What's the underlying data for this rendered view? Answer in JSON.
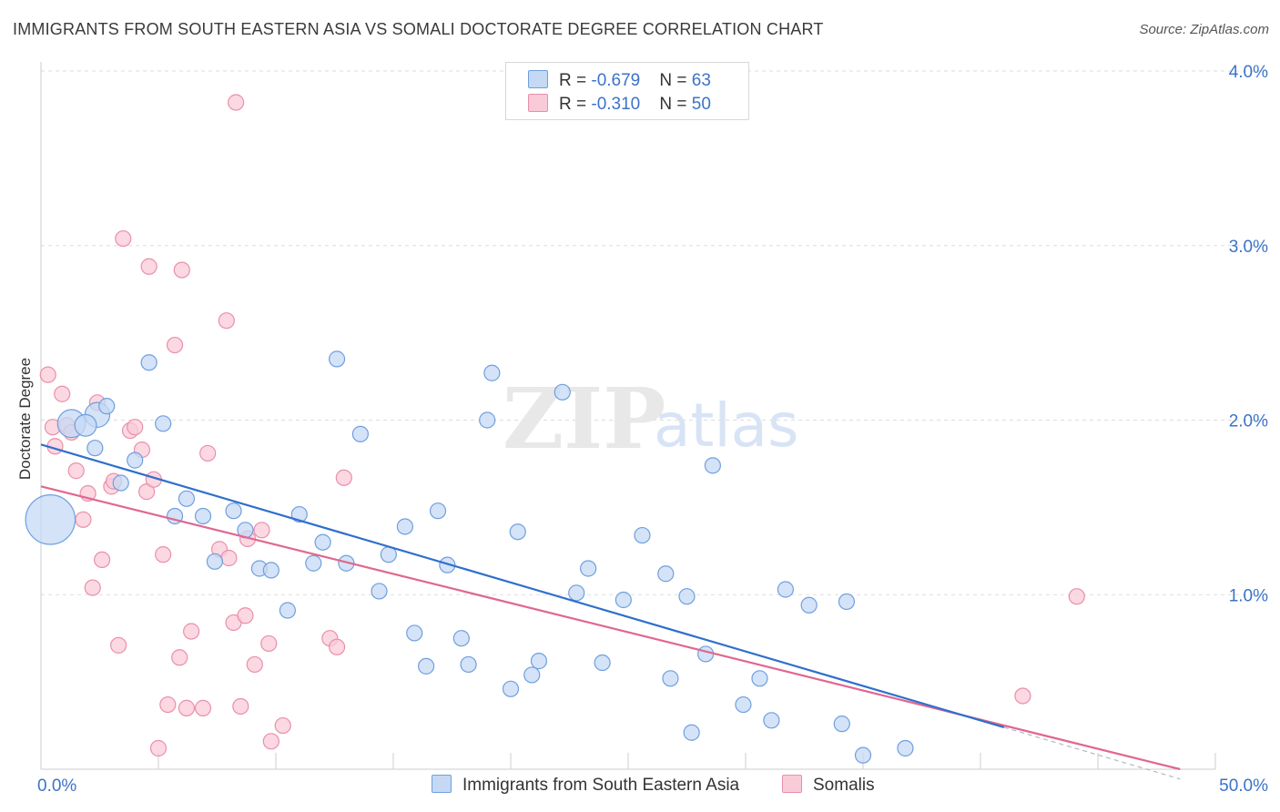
{
  "header": {
    "title": "IMMIGRANTS FROM SOUTH EASTERN ASIA VS SOMALI DOCTORATE DEGREE CORRELATION CHART",
    "source": "Source: ZipAtlas.com"
  },
  "watermark": {
    "zip": "ZIP",
    "atlas": "atlas"
  },
  "legend": {
    "rows": [
      {
        "r_label": "R = ",
        "r_value": "-0.679",
        "n_label": "N = ",
        "n_value": "63"
      },
      {
        "r_label": "R = ",
        "r_value": "-0.310",
        "n_label": "N = ",
        "n_value": "50"
      }
    ]
  },
  "bottom_legend": {
    "series1": "Immigrants from South Eastern Asia",
    "series2": "Somalis"
  },
  "chart_data": {
    "type": "scatter",
    "title": "IMMIGRANTS FROM SOUTH EASTERN ASIA VS SOMALI DOCTORATE DEGREE CORRELATION CHART",
    "ylabel": "Doctorate Degree",
    "xlabel": "",
    "xlim": [
      0,
      50
    ],
    "ylim": [
      0,
      4.0
    ],
    "x_ticks": [
      "0.0%",
      "50.0%"
    ],
    "y_ticks": [
      {
        "value": 1.0,
        "label": "1.0%"
      },
      {
        "value": 2.0,
        "label": "2.0%"
      },
      {
        "value": 3.0,
        "label": "3.0%"
      },
      {
        "value": 4.0,
        "label": "4.0%"
      }
    ],
    "grid": true,
    "colors": {
      "series1_fill": "#c5d9f4",
      "series1_stroke": "#6f9fe0",
      "series1_line": "#2f6fcc",
      "series2_fill": "#f9cbd8",
      "series2_stroke": "#ea8fab",
      "series2_line": "#e0678f",
      "axis_label": "#3b73c8",
      "grid": "#dddddd"
    },
    "series": [
      {
        "name": "Immigrants from South Eastern Asia",
        "r": -0.679,
        "n": 63,
        "trend": {
          "x0": 0,
          "y0": 1.86,
          "x1": 41,
          "y1": 0.24
        },
        "points": [
          [
            0.4,
            1.43,
            3.2
          ],
          [
            1.3,
            1.98,
            1.8
          ],
          [
            2.4,
            2.03,
            1.6
          ],
          [
            1.9,
            1.97,
            1.4
          ],
          [
            2.3,
            1.84,
            1
          ],
          [
            2.8,
            2.08,
            1
          ],
          [
            3.4,
            1.64,
            1
          ],
          [
            4.0,
            1.77,
            1
          ],
          [
            4.6,
            2.33,
            1
          ],
          [
            5.2,
            1.98,
            1
          ],
          [
            5.7,
            1.45,
            1
          ],
          [
            6.2,
            1.55,
            1
          ],
          [
            6.9,
            1.45,
            1
          ],
          [
            7.4,
            1.19,
            1
          ],
          [
            8.2,
            1.48,
            1
          ],
          [
            8.7,
            1.37,
            1
          ],
          [
            9.3,
            1.15,
            1
          ],
          [
            9.8,
            1.14,
            1
          ],
          [
            10.5,
            0.91,
            1
          ],
          [
            11.0,
            1.46,
            1
          ],
          [
            11.6,
            1.18,
            1
          ],
          [
            12.0,
            1.3,
            1
          ],
          [
            12.6,
            2.35,
            1
          ],
          [
            13.0,
            1.18,
            1
          ],
          [
            13.6,
            1.92,
            1
          ],
          [
            14.4,
            1.02,
            1
          ],
          [
            14.8,
            1.23,
            1
          ],
          [
            15.5,
            1.39,
            1
          ],
          [
            15.9,
            0.78,
            1
          ],
          [
            16.4,
            0.59,
            1
          ],
          [
            16.9,
            1.48,
            1
          ],
          [
            17.3,
            1.17,
            1
          ],
          [
            17.9,
            0.75,
            1
          ],
          [
            18.2,
            0.6,
            1
          ],
          [
            19.0,
            2.0,
            1
          ],
          [
            19.2,
            2.27,
            1
          ],
          [
            20.0,
            0.46,
            1
          ],
          [
            20.3,
            1.36,
            1
          ],
          [
            20.9,
            0.54,
            1
          ],
          [
            21.2,
            0.62,
            1
          ],
          [
            22.2,
            2.16,
            1
          ],
          [
            22.8,
            1.01,
            1
          ],
          [
            23.3,
            1.15,
            1
          ],
          [
            23.9,
            0.61,
            1
          ],
          [
            24.8,
            0.97,
            1
          ],
          [
            25.6,
            1.34,
            1
          ],
          [
            26.6,
            1.12,
            1
          ],
          [
            26.8,
            0.52,
            1
          ],
          [
            27.5,
            0.99,
            1
          ],
          [
            27.7,
            0.21,
            1
          ],
          [
            28.3,
            0.66,
            1
          ],
          [
            28.6,
            1.74,
            1
          ],
          [
            29.9,
            0.37,
            1
          ],
          [
            30.6,
            0.52,
            1
          ],
          [
            31.1,
            0.28,
            1
          ],
          [
            31.7,
            1.03,
            1
          ],
          [
            32.7,
            0.94,
            1
          ],
          [
            34.1,
            0.26,
            1
          ],
          [
            34.3,
            0.96,
            1
          ],
          [
            35.0,
            0.08,
            1
          ],
          [
            36.8,
            0.12,
            1
          ]
        ]
      },
      {
        "name": "Somalis",
        "r": -0.31,
        "n": 50,
        "trend": {
          "x0": 0,
          "y0": 1.62,
          "x1": 48.5,
          "y1": 0.0
        },
        "points": [
          [
            0.3,
            2.26,
            1
          ],
          [
            0.5,
            1.96,
            1
          ],
          [
            0.6,
            1.85,
            1
          ],
          [
            0.9,
            2.15,
            1
          ],
          [
            1.1,
            1.97,
            1
          ],
          [
            1.3,
            1.93,
            1
          ],
          [
            1.5,
            1.71,
            1
          ],
          [
            1.8,
            1.43,
            1
          ],
          [
            2.0,
            1.58,
            1
          ],
          [
            2.2,
            1.04,
            1
          ],
          [
            2.4,
            2.1,
            1
          ],
          [
            2.6,
            1.2,
            1
          ],
          [
            3.0,
            1.62,
            1
          ],
          [
            3.1,
            1.65,
            1
          ],
          [
            3.3,
            0.71,
            1
          ],
          [
            3.5,
            3.04,
            1
          ],
          [
            3.8,
            1.94,
            1
          ],
          [
            4.0,
            1.96,
            1
          ],
          [
            4.3,
            1.83,
            1
          ],
          [
            4.5,
            1.59,
            1
          ],
          [
            4.6,
            2.88,
            1
          ],
          [
            4.8,
            1.66,
            1
          ],
          [
            5.0,
            0.12,
            1
          ],
          [
            5.2,
            1.23,
            1
          ],
          [
            5.4,
            0.37,
            1
          ],
          [
            5.7,
            2.43,
            1
          ],
          [
            5.9,
            0.64,
            1
          ],
          [
            6.0,
            2.86,
            1
          ],
          [
            6.2,
            0.35,
            1
          ],
          [
            6.4,
            0.79,
            1
          ],
          [
            6.9,
            0.35,
            1
          ],
          [
            7.1,
            1.81,
            1
          ],
          [
            7.6,
            1.26,
            1
          ],
          [
            7.9,
            2.57,
            1
          ],
          [
            8.0,
            1.21,
            1
          ],
          [
            8.2,
            0.84,
            1
          ],
          [
            8.5,
            0.36,
            1
          ],
          [
            8.7,
            0.88,
            1
          ],
          [
            8.8,
            1.32,
            1
          ],
          [
            9.1,
            0.6,
            1
          ],
          [
            9.4,
            1.37,
            1
          ],
          [
            9.7,
            0.72,
            1
          ],
          [
            9.8,
            0.16,
            1
          ],
          [
            10.3,
            0.25,
            1
          ],
          [
            8.3,
            3.82,
            1
          ],
          [
            12.3,
            0.75,
            1
          ],
          [
            12.6,
            0.7,
            1
          ],
          [
            12.9,
            1.67,
            1
          ],
          [
            41.8,
            0.42,
            1
          ],
          [
            44.1,
            0.99,
            1
          ]
        ]
      }
    ]
  }
}
